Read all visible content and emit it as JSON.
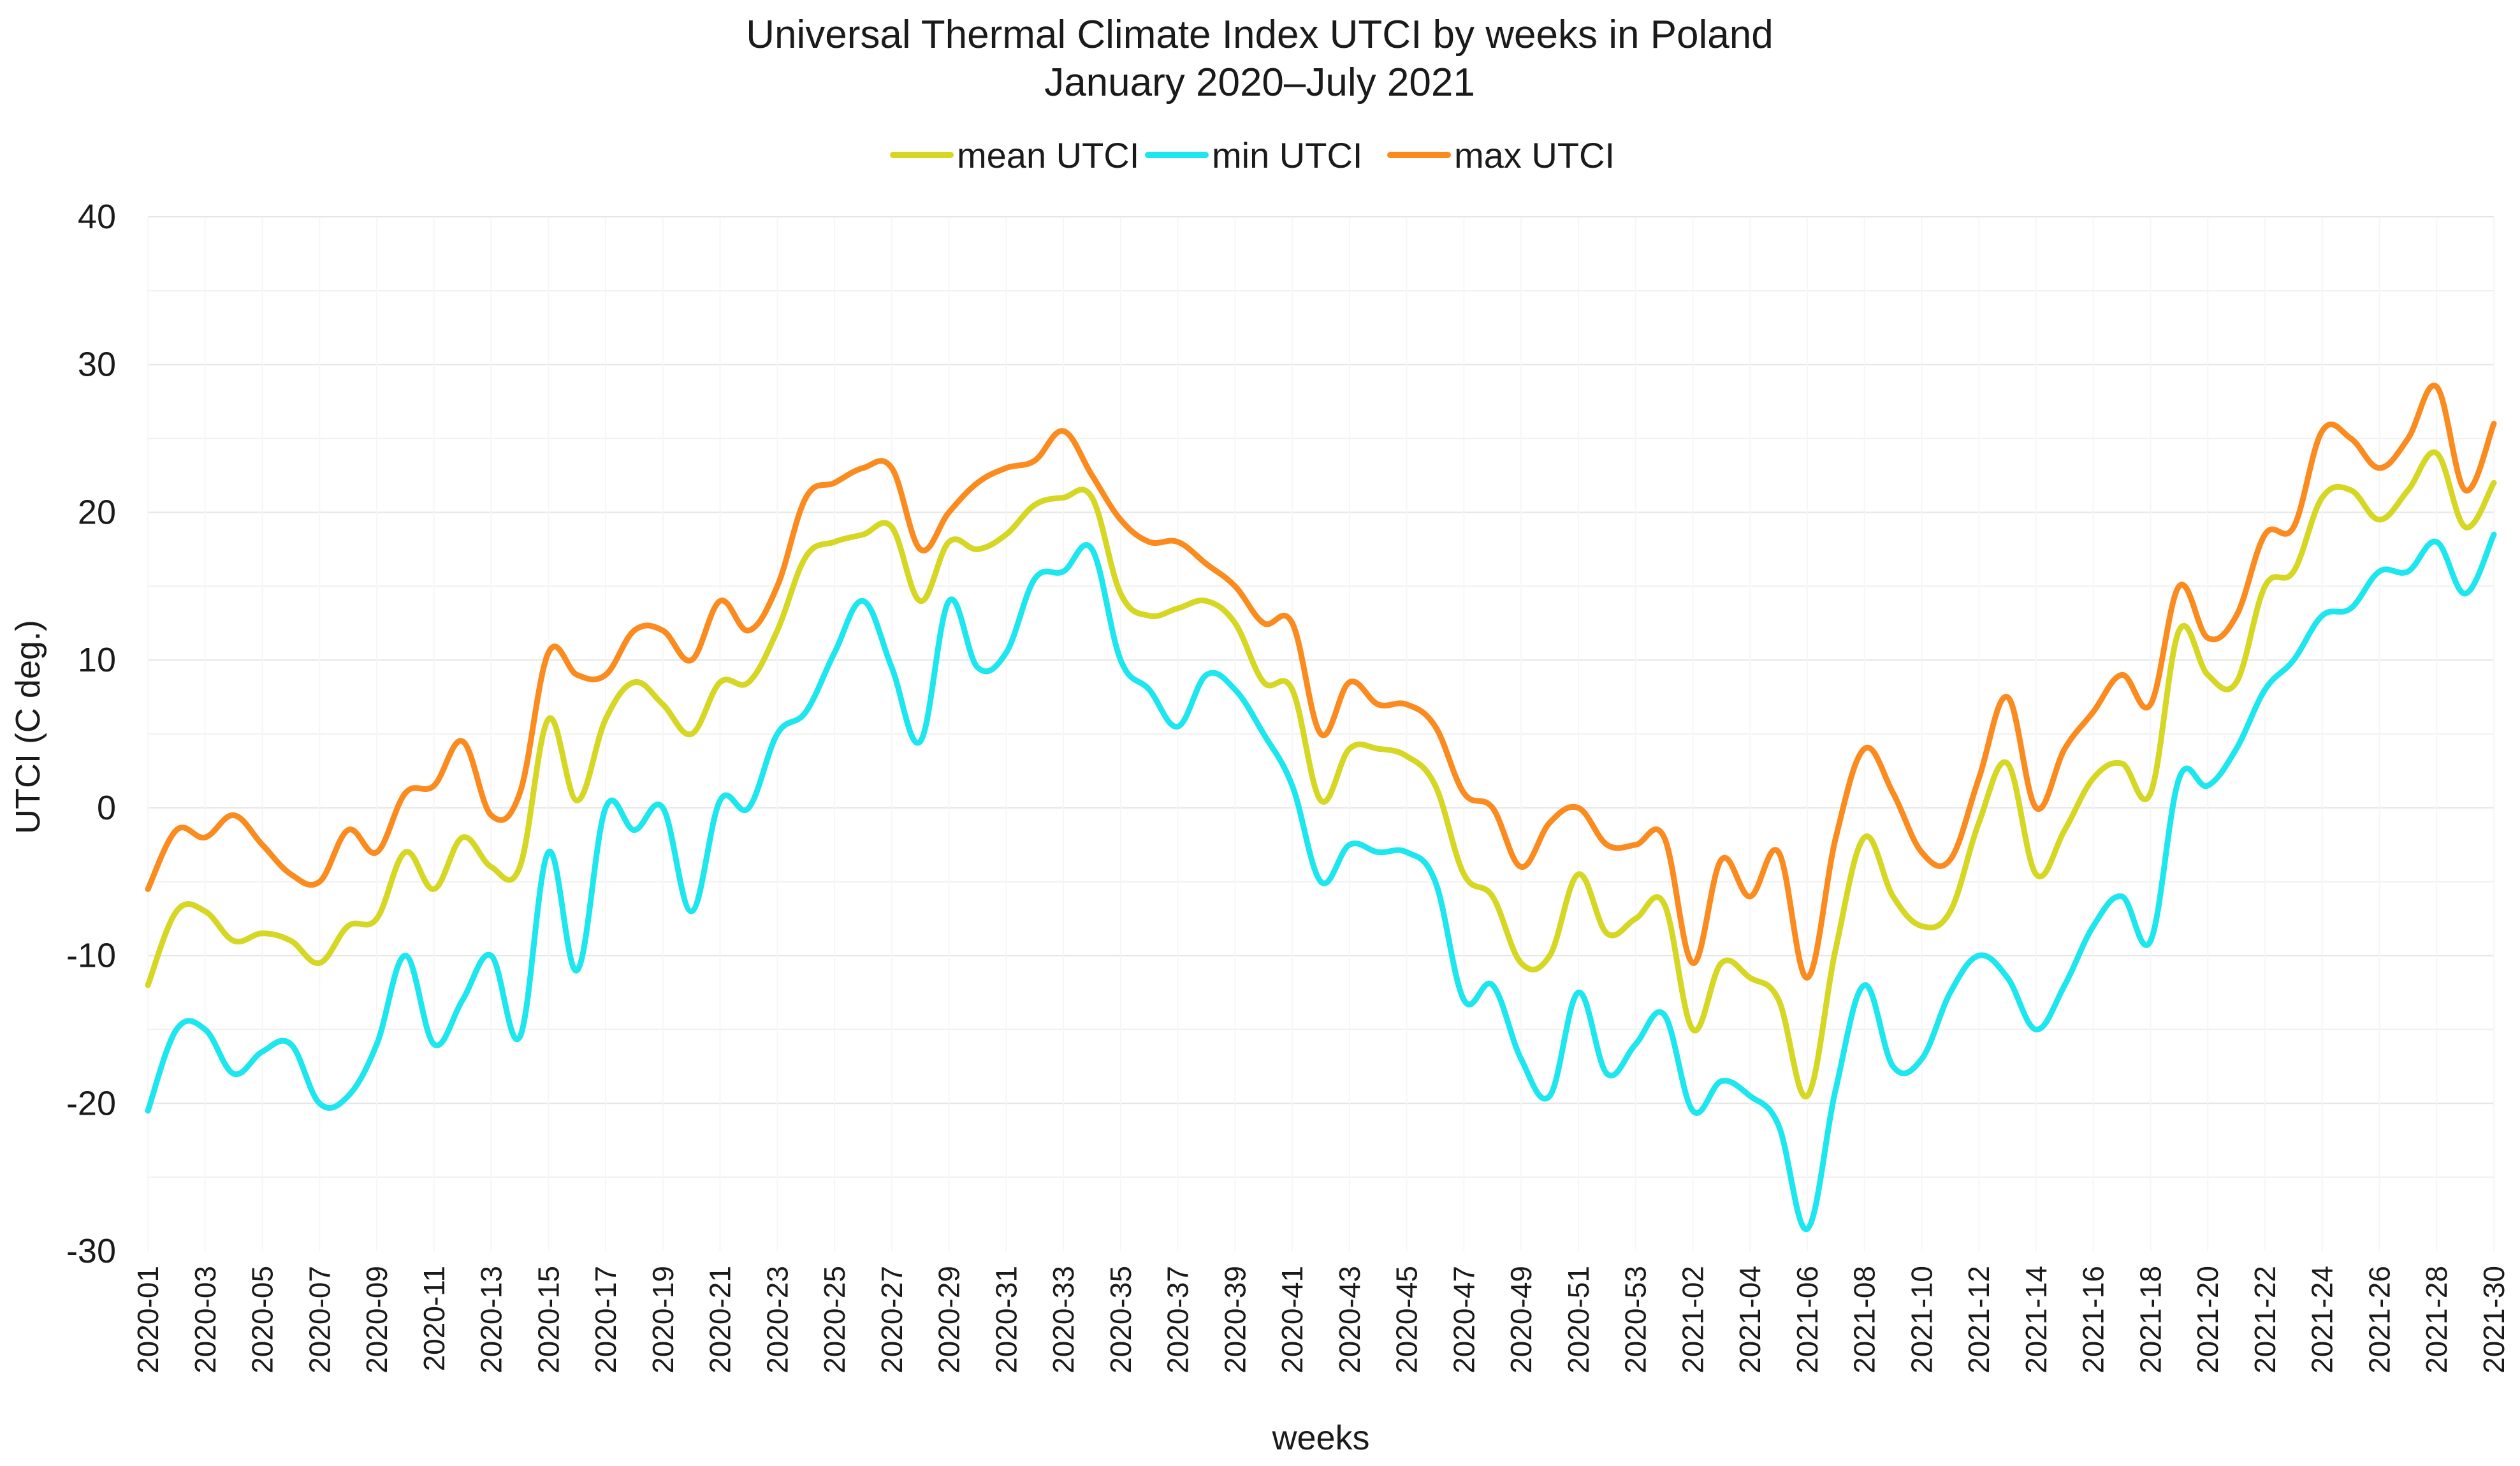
{
  "chart_data": {
    "type": "line",
    "title": "Universal Thermal Climate Index UTCI  by weeks in Poland",
    "subtitle": "January 2020–July 2021",
    "xlabel": "weeks",
    "ylabel": "UTCI (C deg.)",
    "ylim": [
      -30,
      40
    ],
    "yticks": [
      40,
      30,
      20,
      10,
      0,
      -10,
      -20,
      -30
    ],
    "ytick_labels": [
      "40",
      "30",
      "20",
      "10",
      "0",
      "-10",
      "-20",
      "-30"
    ],
    "grid": true,
    "legend_position": "top-center",
    "x": [
      "2020-01",
      "2020-02",
      "2020-03",
      "2020-04",
      "2020-05",
      "2020-06",
      "2020-07",
      "2020-08",
      "2020-09",
      "2020-10",
      "2020-11",
      "2020-12",
      "2020-13",
      "2020-14",
      "2020-15",
      "2020-16",
      "2020-17",
      "2020-18",
      "2020-19",
      "2020-20",
      "2020-21",
      "2020-22",
      "2020-23",
      "2020-24",
      "2020-25",
      "2020-26",
      "2020-27",
      "2020-28",
      "2020-29",
      "2020-30",
      "2020-31",
      "2020-32",
      "2020-33",
      "2020-34",
      "2020-35",
      "2020-36",
      "2020-37",
      "2020-38",
      "2020-39",
      "2020-40",
      "2020-41",
      "2020-42",
      "2020-43",
      "2020-44",
      "2020-45",
      "2020-46",
      "2020-47",
      "2020-48",
      "2020-49",
      "2020-50",
      "2020-51",
      "2020-52",
      "2020-53",
      "2021-01",
      "2021-02",
      "2021-03",
      "2021-04",
      "2021-05",
      "2021-06",
      "2021-07",
      "2021-08",
      "2021-09",
      "2021-10",
      "2021-11",
      "2021-12",
      "2021-13",
      "2021-14",
      "2021-15",
      "2021-16",
      "2021-17",
      "2021-18",
      "2021-19",
      "2021-20",
      "2021-21",
      "2021-22",
      "2021-23",
      "2021-24",
      "2021-25",
      "2021-26",
      "2021-27",
      "2021-28",
      "2021-29",
      "2021-30"
    ],
    "x_tick_labels": [
      "2020-01",
      "2020-03",
      "2020-05",
      "2020-07",
      "2020-09",
      "2020-11",
      "2020-13",
      "2020-15",
      "2020-17",
      "2020-19",
      "2020-21",
      "2020-23",
      "2020-25",
      "2020-27",
      "2020-29",
      "2020-31",
      "2020-33",
      "2020-35",
      "2020-37",
      "2020-39",
      "2020-41",
      "2020-43",
      "2020-45",
      "2020-47",
      "2020-49",
      "2020-51",
      "2020-53",
      "2021-02",
      "2021-04",
      "2021-06",
      "2021-08",
      "2021-10",
      "2021-12",
      "2021-14",
      "2021-16",
      "2021-18",
      "2021-20",
      "2021-22",
      "2021-24",
      "2021-26",
      "2021-28",
      "2021-30"
    ],
    "series": [
      {
        "name": "mean UTCI",
        "color": "#d6d624",
        "values": [
          -12,
          -7,
          -7,
          -9,
          -8.5,
          -9,
          -10.5,
          -8,
          -7.5,
          -3,
          -5.5,
          -2,
          -4,
          -4,
          6,
          0.5,
          6,
          8.5,
          7,
          5,
          8.5,
          8.5,
          12,
          17,
          18,
          18.5,
          19,
          14,
          18,
          17.5,
          18.5,
          20.5,
          21,
          21,
          14.5,
          13,
          13.5,
          14,
          12.5,
          8.5,
          8,
          0.5,
          4,
          4,
          3.5,
          1.5,
          -4.5,
          -6,
          -10.5,
          -10,
          -4.5,
          -8.5,
          -7.5,
          -6.5,
          -15,
          -10.5,
          -11.5,
          -13,
          -19.5,
          -9.5,
          -2,
          -6,
          -8,
          -7,
          -1,
          3,
          -4.5,
          -1.5,
          2,
          3,
          1,
          12,
          9,
          8.5,
          15,
          16,
          21,
          21.5,
          19.5,
          21.5,
          24,
          19,
          22
        ]
      },
      {
        "name": "min UTCI",
        "color": "#1ee6ee",
        "values": [
          -20.5,
          -15,
          -15,
          -18,
          -16.5,
          -16,
          -20,
          -19.5,
          -16,
          -10,
          -16,
          -13,
          -10,
          -15.5,
          -3,
          -11,
          0,
          -1.5,
          0,
          -7,
          0.5,
          0,
          5,
          6.5,
          10.5,
          14,
          9.5,
          4.5,
          14,
          9.5,
          10.5,
          15.5,
          16,
          17.5,
          10,
          8,
          5.5,
          9,
          8,
          5,
          1.5,
          -5,
          -2.5,
          -3,
          -3,
          -5,
          -13,
          -12,
          -17,
          -19.5,
          -12.5,
          -18,
          -16,
          -14,
          -20.5,
          -18.5,
          -19.5,
          -21.5,
          -28.5,
          -19,
          -12,
          -17.5,
          -17,
          -12.5,
          -10,
          -11.5,
          -15,
          -12,
          -8,
          -6,
          -9,
          2,
          1.5,
          4,
          8,
          10,
          13,
          13.5,
          16,
          16,
          18,
          14.5,
          18.5
        ]
      },
      {
        "name": "max UTCI",
        "color": "#fb8b1e",
        "values": [
          -5.5,
          -1.5,
          -2,
          -0.5,
          -2.5,
          -4.5,
          -5,
          -1.5,
          -3,
          1,
          1.5,
          4.5,
          -0.5,
          1,
          10.5,
          9,
          9,
          12,
          12,
          10,
          14,
          12,
          15,
          21,
          22,
          23,
          23,
          17.5,
          20,
          22,
          23,
          23.5,
          25.5,
          22.5,
          19.5,
          18,
          18,
          16.5,
          15,
          12.5,
          12.5,
          5,
          8.5,
          7,
          7,
          5.5,
          1,
          0,
          -4,
          -1,
          0,
          -2.5,
          -2.5,
          -2,
          -10.5,
          -3.5,
          -6,
          -3,
          -11.5,
          -2,
          4,
          1,
          -3,
          -3.5,
          2,
          7.5,
          0,
          4,
          6.5,
          9,
          7,
          15,
          11.5,
          13,
          18.5,
          19,
          25.5,
          25,
          23,
          25,
          28.5,
          21.5,
          26
        ]
      }
    ]
  }
}
